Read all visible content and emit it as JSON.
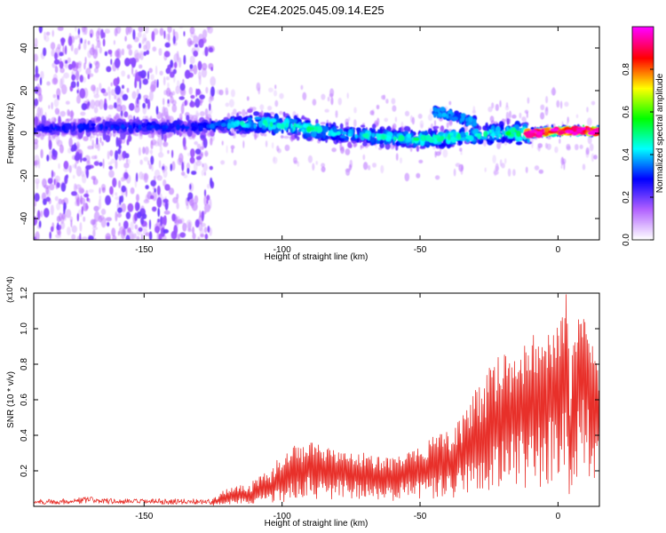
{
  "figure": {
    "title": "C2E4.2025.045.09.14.E25"
  },
  "chart_data": [
    {
      "type": "heatmap",
      "title": "C2E4.2025.045.09.14.E25",
      "xlabel": "Height of straight line (km)",
      "ylabel": "Frequency (Hz)",
      "xlim": [
        -190,
        15
      ],
      "ylim": [
        -50,
        50
      ],
      "xticks": [
        -150,
        -100,
        -50,
        0
      ],
      "xtick_labels": [
        "-150",
        "-100",
        "-50",
        "0"
      ],
      "yticks": [
        -40,
        -20,
        0,
        20,
        40
      ],
      "ytick_labels": [
        "-40",
        "-20",
        "0",
        "20",
        "40"
      ],
      "colorbar": {
        "label": "Normalized spectral amplitude",
        "range": [
          0,
          1
        ],
        "ticks": [
          0.0,
          0.2,
          0.4,
          0.6,
          0.8
        ],
        "tick_labels": [
          "0.0",
          "0.2",
          "0.4",
          "0.6",
          "0.8"
        ],
        "colormap": [
          "#ffffff",
          "#b060ff",
          "#0000ff",
          "#00ffff",
          "#00ff00",
          "#ffff00",
          "#ff0000",
          "#ff00ff"
        ]
      },
      "ridge": {
        "x": [
          -190,
          -170,
          -150,
          -130,
          -120,
          -110,
          -100,
          -90,
          -80,
          -70,
          -60,
          -50,
          -40,
          -30,
          -20,
          -10,
          0,
          10,
          15
        ],
        "center_freq": [
          2,
          3,
          3,
          3,
          4,
          5,
          4,
          2,
          0,
          -1,
          -2,
          -3,
          -2,
          -1,
          0,
          0,
          1,
          1,
          1
        ],
        "amplitude": [
          0.25,
          0.28,
          0.28,
          0.28,
          0.35,
          0.45,
          0.45,
          0.45,
          0.4,
          0.4,
          0.42,
          0.45,
          0.45,
          0.45,
          0.45,
          0.6,
          0.75,
          0.85,
          0.9
        ],
        "upper_branch": {
          "x": [
            -45,
            -40,
            -35,
            -30
          ],
          "center_freq": [
            10,
            9,
            7,
            5
          ]
        }
      },
      "noise_region": {
        "x_range": [
          -190,
          -125
        ],
        "freq_range": [
          -50,
          50
        ]
      },
      "grid": false
    },
    {
      "type": "line",
      "xlabel": "Height of straight line (km)",
      "ylabel": "SNR (10 * v/v)",
      "y_multiplier": "(x10^4)",
      "xlim": [
        -190,
        15
      ],
      "ylim": [
        0,
        1.2
      ],
      "xticks": [
        -150,
        -100,
        -50,
        0
      ],
      "xtick_labels": [
        "-150",
        "-100",
        "-50",
        "0"
      ],
      "yticks": [
        0.2,
        0.4,
        0.6,
        0.8,
        1.0,
        1.2
      ],
      "ytick_labels": [
        "0.2",
        "0.4",
        "0.6",
        "0.8",
        "1.0",
        "1.2"
      ],
      "color": "#e8302a",
      "grid": false,
      "series": [
        {
          "x": [
            -190,
            -180,
            -170,
            -160,
            -150,
            -140,
            -130,
            -125,
            -120,
            -115,
            -110,
            -105,
            -100,
            -95,
            -90,
            -85,
            -80,
            -75,
            -70,
            -65,
            -60,
            -55,
            -50,
            -45,
            -40,
            -35,
            -30,
            -25,
            -20,
            -15,
            -10,
            -5,
            0,
            2,
            3,
            4,
            6,
            8,
            10,
            12,
            14,
            15
          ],
          "values": [
            0.03,
            0.03,
            0.04,
            0.03,
            0.03,
            0.03,
            0.03,
            0.03,
            0.06,
            0.08,
            0.08,
            0.12,
            0.16,
            0.22,
            0.28,
            0.22,
            0.24,
            0.22,
            0.22,
            0.2,
            0.2,
            0.22,
            0.24,
            0.28,
            0.3,
            0.35,
            0.45,
            0.5,
            0.6,
            0.65,
            0.72,
            0.75,
            0.8,
            0.9,
            1.2,
            0.25,
            0.85,
            0.9,
            0.95,
            0.8,
            0.75,
            0.45
          ],
          "envelope_max": [
            0.05,
            0.05,
            0.1,
            0.05,
            0.05,
            0.05,
            0.05,
            0.05,
            0.1,
            0.13,
            0.15,
            0.22,
            0.3,
            0.35,
            0.36,
            0.34,
            0.32,
            0.3,
            0.3,
            0.3,
            0.28,
            0.3,
            0.33,
            0.4,
            0.42,
            0.5,
            0.65,
            0.82,
            0.85,
            0.9,
            0.98,
            0.95,
            1.05,
            1.1,
            1.2,
            1.0,
            1.0,
            1.08,
            1.08,
            0.95,
            0.9,
            0.6
          ]
        }
      ]
    }
  ]
}
